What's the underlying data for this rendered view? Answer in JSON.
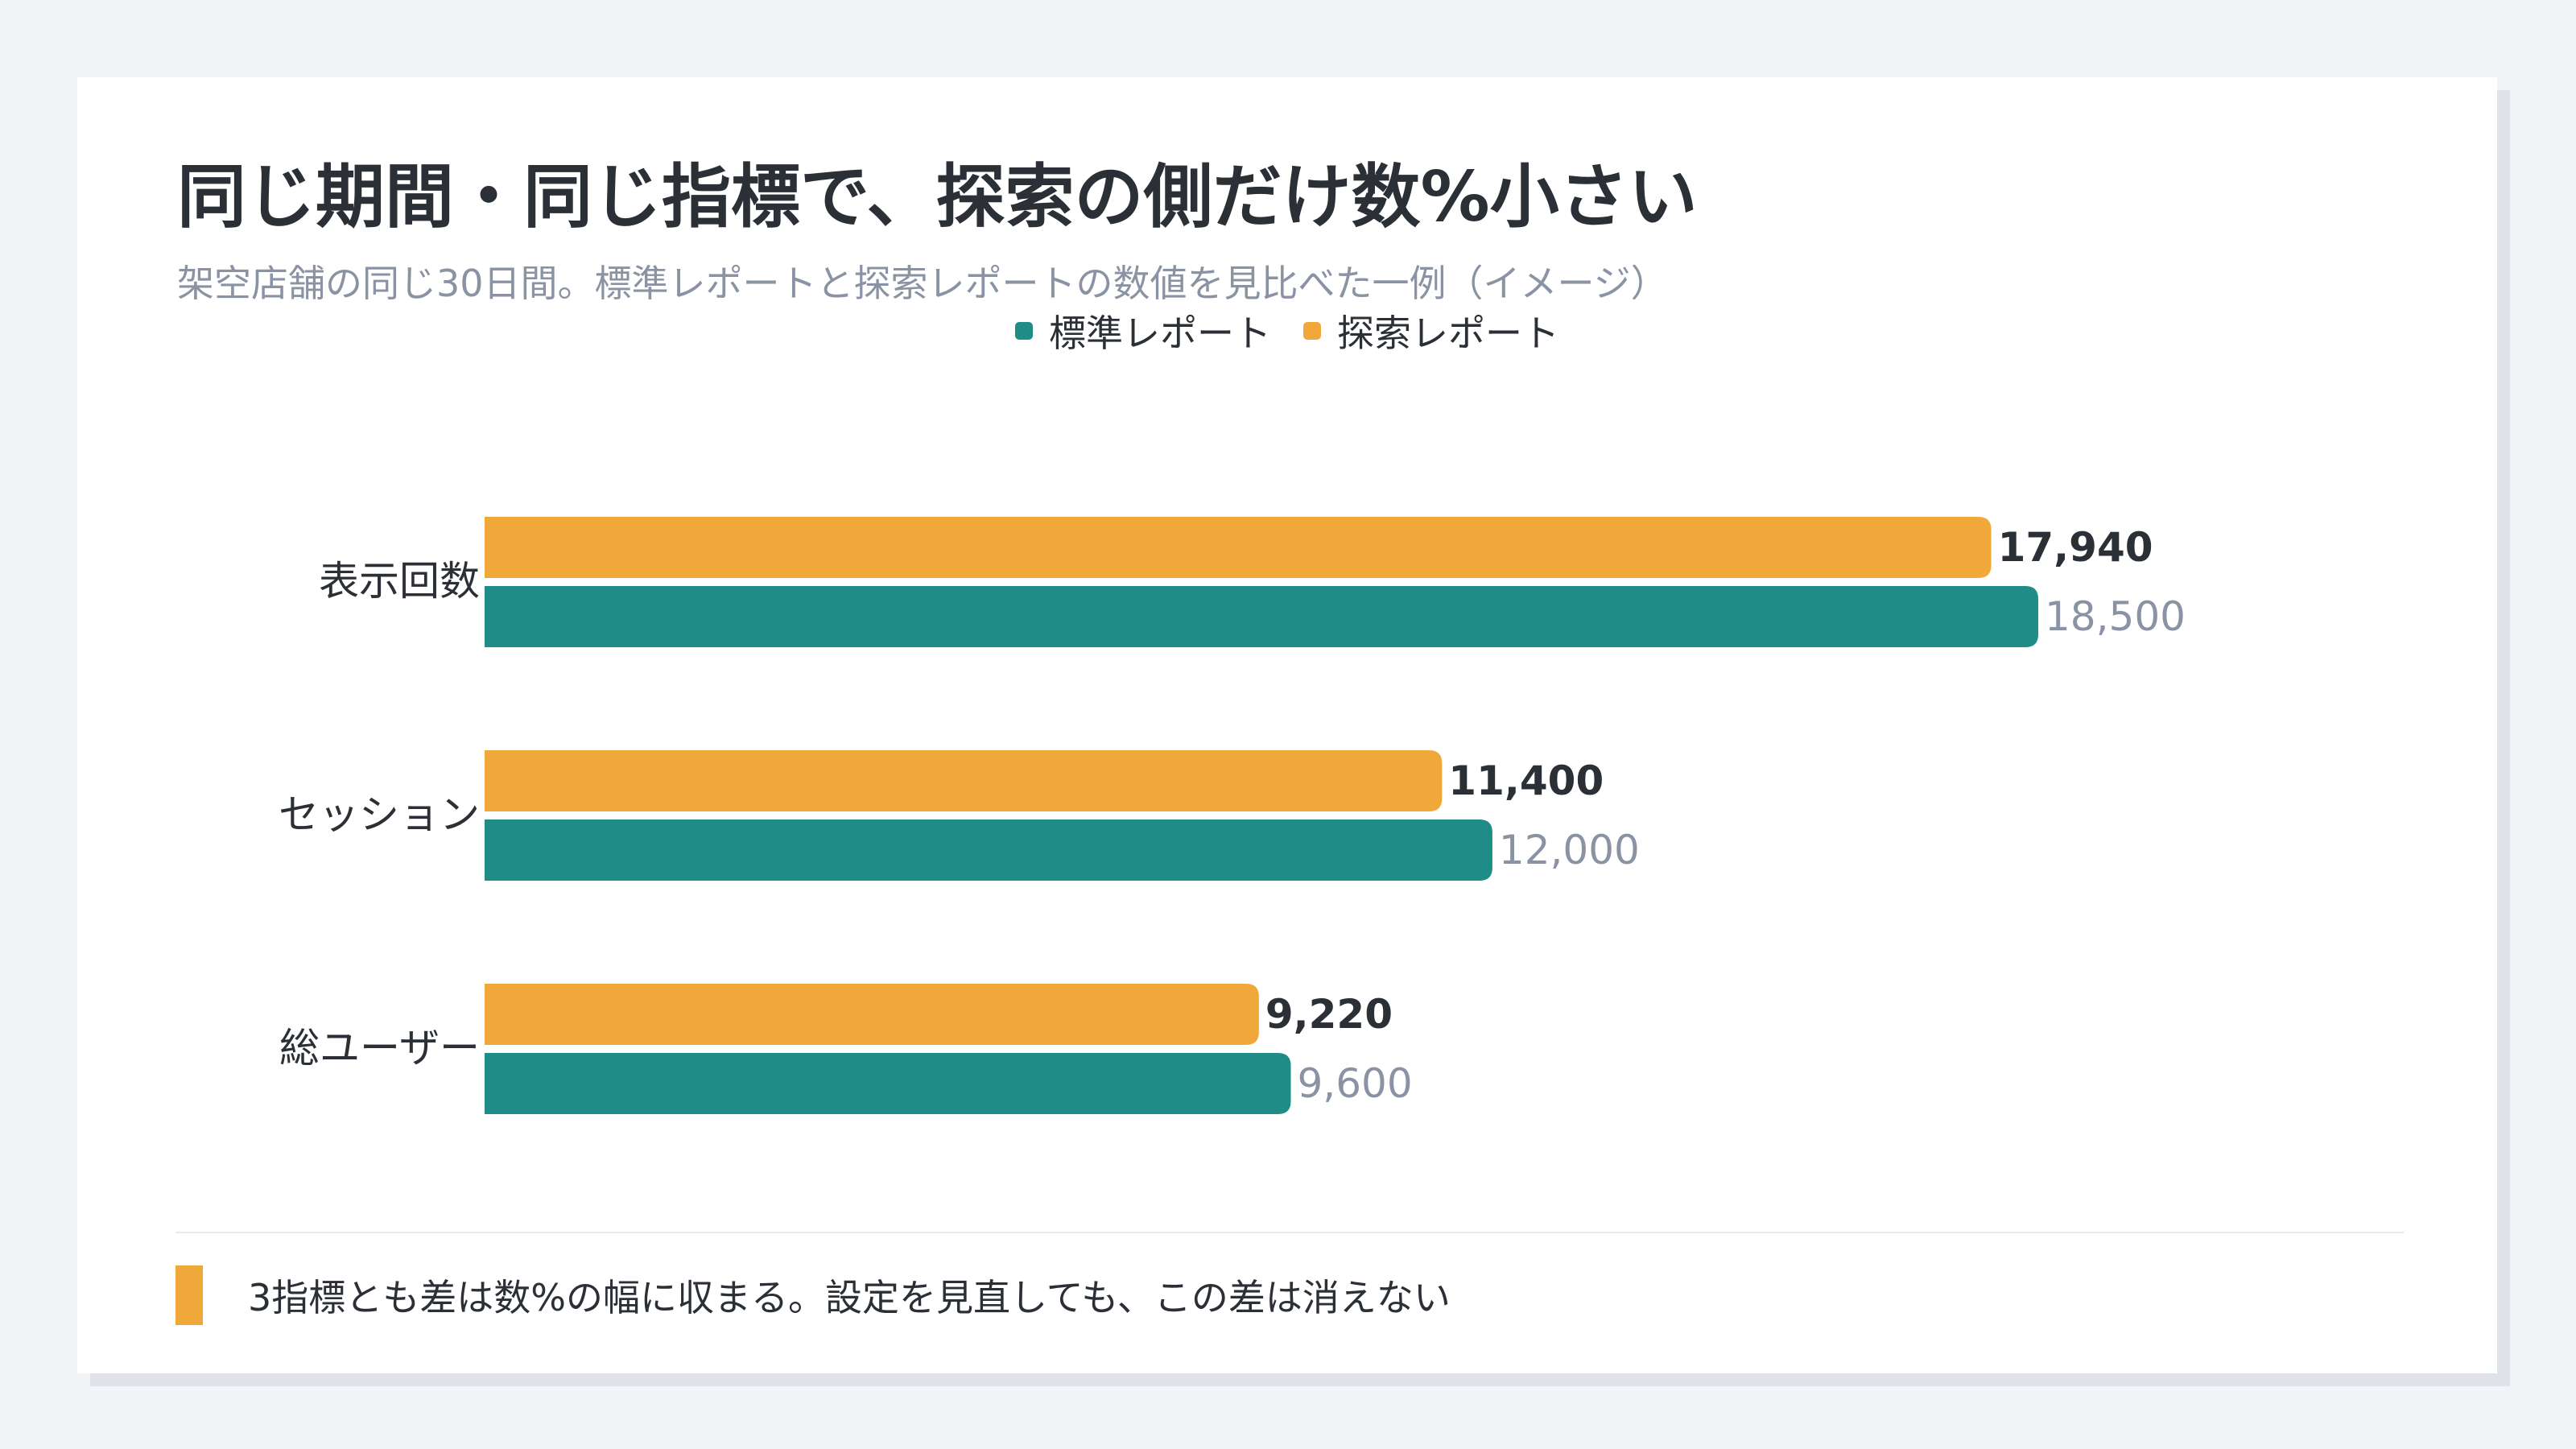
{
  "title": "同じ期間・同じ指標で、探索の側だけ数%小さい",
  "subtitle": "架空店舗の同じ30日間。標準レポートと探索レポートの数値を見比べた一例（イメージ）",
  "colors": {
    "standard": "#1f8c88",
    "exploration": "#f0a83b",
    "value_muted": "#8a93a3",
    "value_bold": "#2b2f36"
  },
  "chart_data": {
    "type": "bar",
    "orientation": "horizontal",
    "categories": [
      "表示回数",
      "セッション",
      "総ユーザー"
    ],
    "series": [
      {
        "name": "探索レポート",
        "values": [
          17940,
          11400,
          9220
        ],
        "value_labels": [
          "17,940",
          "11,400",
          "9,220"
        ]
      },
      {
        "name": "標準レポート",
        "values": [
          18500,
          12000,
          9600
        ],
        "value_labels": [
          "18,500",
          "12,000",
          "9,600"
        ]
      }
    ],
    "legend": [
      "標準レポート",
      "探索レポート"
    ],
    "legend_position": "top-center",
    "xlim": [
      0,
      18500
    ],
    "grid": false
  },
  "note": "3指標とも差は数%の幅に収まる。設定を見直しても、この差は消えない"
}
